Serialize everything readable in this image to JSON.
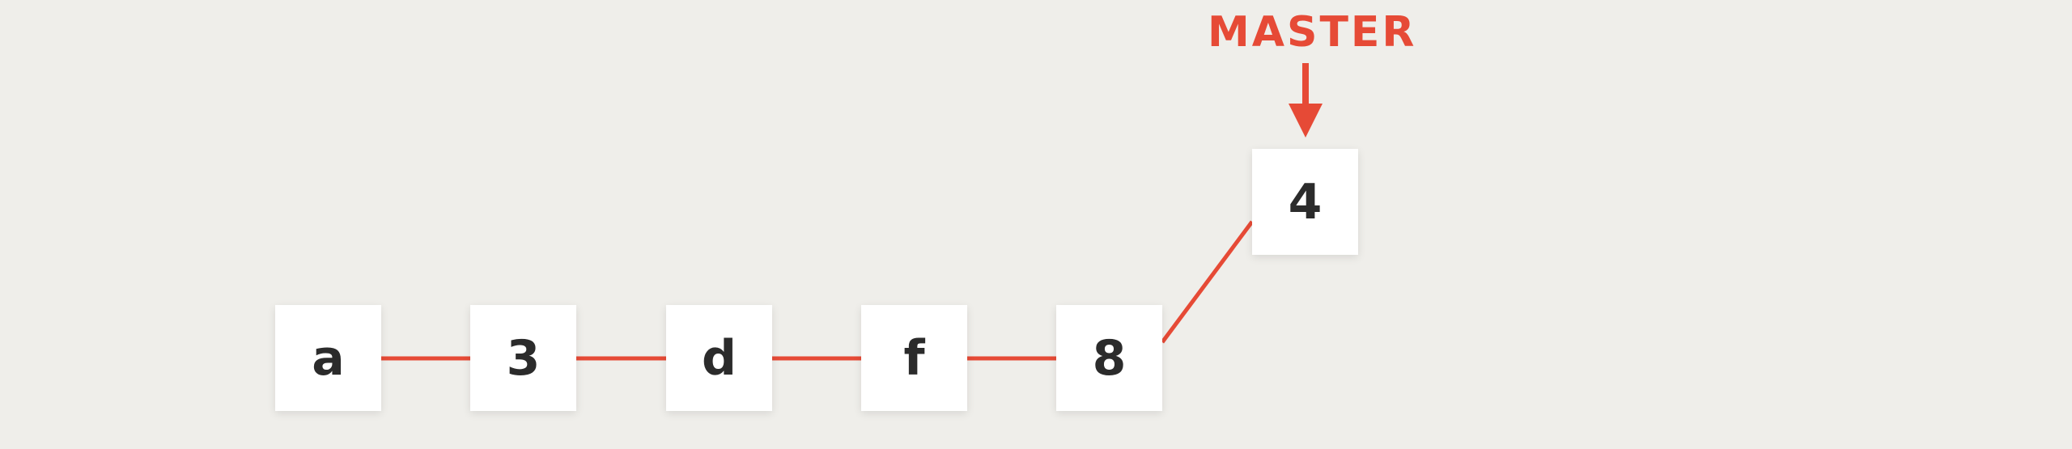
{
  "colors": {
    "background": "#efeeea",
    "accent": "#e64a36",
    "node_fill": "#ffffff",
    "node_text": "#2b2b2b"
  },
  "commits": [
    {
      "label": "a"
    },
    {
      "label": "3"
    },
    {
      "label": "d"
    },
    {
      "label": "f"
    },
    {
      "label": "8"
    },
    {
      "label": "4"
    }
  ],
  "branch_pointer": {
    "label": "MASTER",
    "points_to": "4"
  }
}
